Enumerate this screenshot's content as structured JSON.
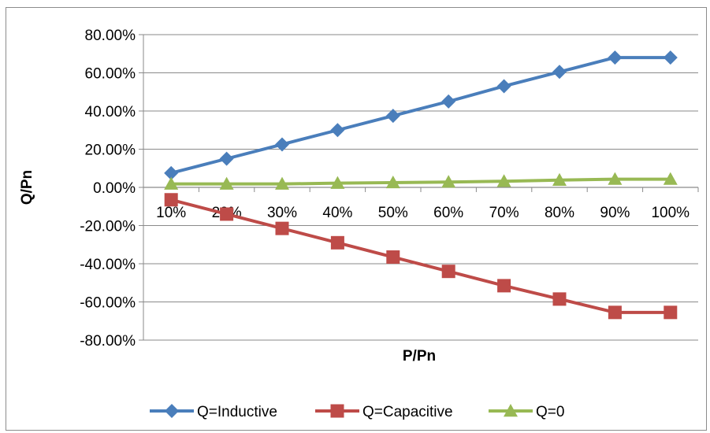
{
  "chart_data": {
    "type": "line",
    "title": "",
    "xlabel": "P/Pn",
    "ylabel": "Q/Pn",
    "categories": [
      "10%",
      "20%",
      "30%",
      "40%",
      "50%",
      "60%",
      "70%",
      "80%",
      "90%",
      "100%"
    ],
    "y_ticks": [
      "80.00%",
      "60.00%",
      "40.00%",
      "20.00%",
      "0.00%",
      "-20.00%",
      "-40.00%",
      "-60.00%",
      "-80.00%"
    ],
    "ylim": [
      -80,
      80
    ],
    "y_unit": "%",
    "grid": true,
    "legend_position": "bottom",
    "series": [
      {
        "name": "Q=Inductive",
        "color": "#4a7ebb",
        "marker": "diamond",
        "values": [
          7.5,
          15,
          22.5,
          30,
          37.5,
          45,
          53,
          60.5,
          68,
          68
        ]
      },
      {
        "name": "Q=Capacitive",
        "color": "#be4b48",
        "marker": "square",
        "values": [
          -6.5,
          -14,
          -21.5,
          -29,
          -36.5,
          -44,
          -51.5,
          -58.5,
          -65.5,
          -65.5
        ]
      },
      {
        "name": "Q=0",
        "color": "#98b954",
        "marker": "triangle",
        "values": [
          1.8,
          1.8,
          1.8,
          2.2,
          2.5,
          2.8,
          3.2,
          3.8,
          4.3,
          4.3
        ]
      }
    ]
  }
}
